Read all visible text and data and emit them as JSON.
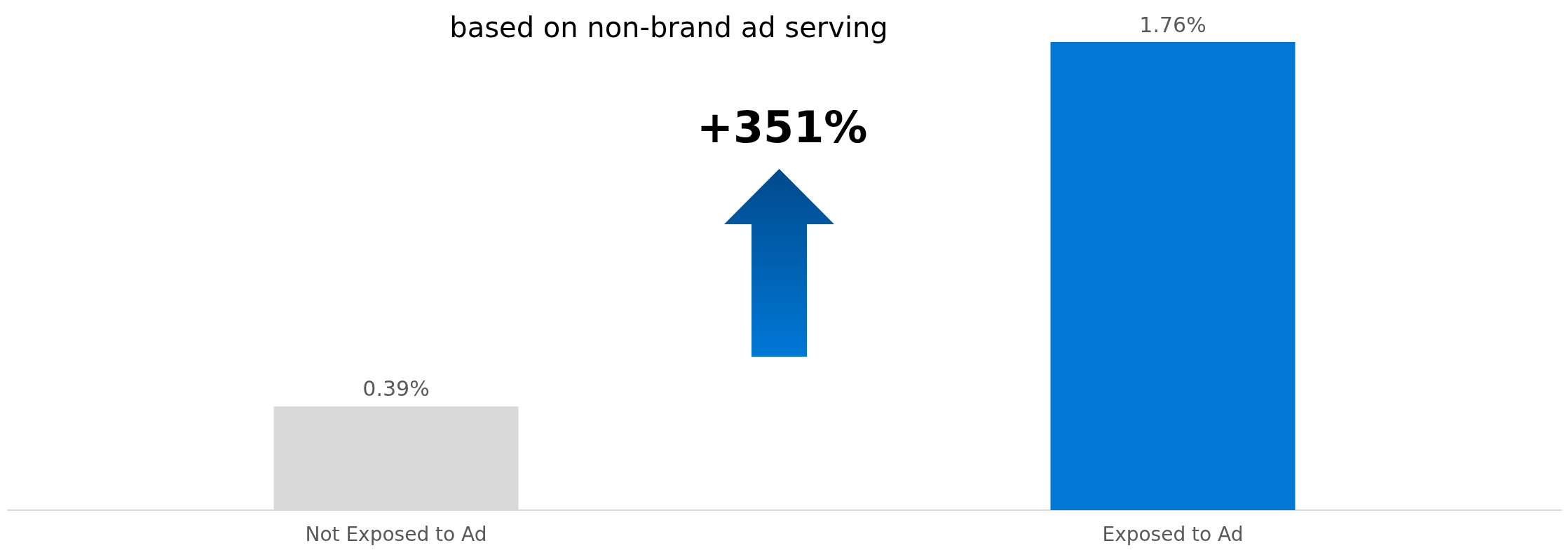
{
  "chart_data": {
    "type": "bar",
    "title": "based on non-brand ad serving",
    "categories": [
      "Not Exposed to Ad",
      "Exposed to Ad"
    ],
    "values": [
      0.39,
      1.76
    ],
    "colors": [
      "#d9d9d9",
      "#0078d4"
    ],
    "value_labels": [
      "0.39%",
      "1.76%"
    ],
    "annotations": [
      "+351%"
    ],
    "grid": false
  }
}
